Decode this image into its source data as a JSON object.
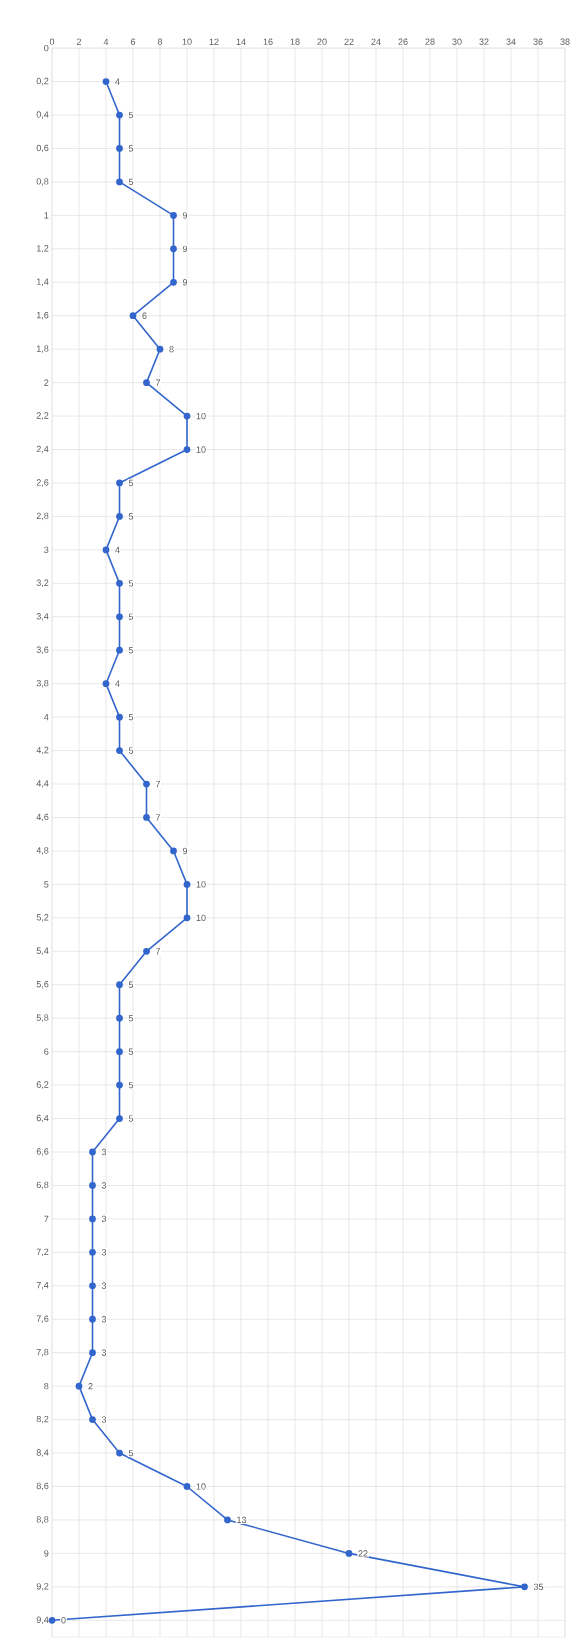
{
  "chart_data": {
    "type": "line",
    "xlim": [
      0,
      38
    ],
    "xticks": [
      0,
      2,
      4,
      6,
      8,
      10,
      12,
      14,
      16,
      18,
      20,
      22,
      24,
      26,
      28,
      30,
      32,
      34,
      36,
      38
    ],
    "ylim": [
      9.5,
      0
    ],
    "yticks": [
      0,
      {
        "value": 0.2,
        "label": "0,2"
      },
      {
        "value": 0.4,
        "label": "0,4"
      },
      {
        "value": 0.6,
        "label": "0,6"
      },
      {
        "value": 0.8,
        "label": "0,8"
      },
      1,
      {
        "value": 1.2,
        "label": "1,2"
      },
      {
        "value": 1.4,
        "label": "1,4"
      },
      {
        "value": 1.6,
        "label": "1,6"
      },
      {
        "value": 1.8,
        "label": "1,8"
      },
      2,
      {
        "value": 2.2,
        "label": "2,2"
      },
      {
        "value": 2.4,
        "label": "2,4"
      },
      {
        "value": 2.6,
        "label": "2,6"
      },
      {
        "value": 2.8,
        "label": "2,8"
      },
      3,
      {
        "value": 3.2,
        "label": "3,2"
      },
      {
        "value": 3.4,
        "label": "3,4"
      },
      {
        "value": 3.6,
        "label": "3,6"
      },
      {
        "value": 3.8,
        "label": "3,8"
      },
      4,
      {
        "value": 4.2,
        "label": "4,2"
      },
      {
        "value": 4.4,
        "label": "4,4"
      },
      {
        "value": 4.6,
        "label": "4,6"
      },
      {
        "value": 4.8,
        "label": "4,8"
      },
      5,
      {
        "value": 5.2,
        "label": "5,2"
      },
      {
        "value": 5.4,
        "label": "5,4"
      },
      {
        "value": 5.6,
        "label": "5,6"
      },
      {
        "value": 5.8,
        "label": "5,8"
      },
      6,
      {
        "value": 6.2,
        "label": "6,2"
      },
      {
        "value": 6.4,
        "label": "6,4"
      },
      {
        "value": 6.6,
        "label": "6,6"
      },
      {
        "value": 6.8,
        "label": "6,8"
      },
      7,
      {
        "value": 7.2,
        "label": "7,2"
      },
      {
        "value": 7.4,
        "label": "7,4"
      },
      {
        "value": 7.6,
        "label": "7,6"
      },
      {
        "value": 7.8,
        "label": "7,8"
      },
      8,
      {
        "value": 8.2,
        "label": "8,2"
      },
      {
        "value": 8.4,
        "label": "8,4"
      },
      {
        "value": 8.6,
        "label": "8,6"
      },
      {
        "value": 8.8,
        "label": "8,8"
      },
      9,
      {
        "value": 9.2,
        "label": "9,2"
      },
      {
        "value": 9.4,
        "label": "9,4"
      }
    ],
    "grid": true,
    "marker": "circle",
    "orientation": "horizontal",
    "data_labels": true,
    "line_style": "solid",
    "series": [
      {
        "color": "#3366cc",
        "x": [
          0.2,
          0.4,
          0.6,
          0.8,
          1,
          1.2,
          1.4,
          1.6,
          1.8,
          2,
          2.2,
          2.4,
          2.6,
          2.8,
          3,
          3.2,
          3.4,
          3.6,
          3.8,
          4,
          4.2,
          4.4,
          4.6,
          4.8,
          5,
          5.2,
          5.4,
          5.6,
          5.8,
          6,
          6.2,
          6.4,
          6.6,
          6.8,
          7,
          7.2,
          7.4,
          7.6,
          7.8,
          8,
          8.2,
          8.4,
          8.6,
          8.8,
          9,
          9.2,
          9.4
        ],
        "values": [
          4,
          5,
          5,
          5,
          9,
          9,
          9,
          6,
          8,
          7,
          10,
          10,
          5,
          5,
          4,
          5,
          5,
          5,
          4,
          5,
          5,
          7,
          7,
          9,
          10,
          10,
          7,
          5,
          5,
          5,
          5,
          5,
          3,
          3,
          3,
          3,
          3,
          3,
          3,
          2,
          3,
          5,
          10,
          13,
          22,
          35,
          0
        ]
      }
    ]
  }
}
